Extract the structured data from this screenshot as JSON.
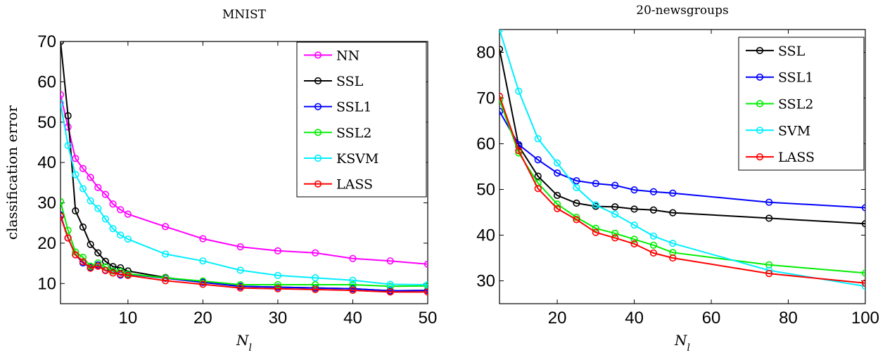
{
  "chart_data": [
    {
      "type": "line",
      "title": "MNIST",
      "xlabel": "N_l",
      "ylabel": "classification error",
      "xlim": [
        1,
        50
      ],
      "ylim": [
        5,
        70
      ],
      "xticks": [
        10,
        20,
        30,
        40,
        50
      ],
      "yticks": [
        10,
        20,
        30,
        40,
        50,
        60,
        70
      ],
      "legend_position": "top-right",
      "grid": false,
      "series": [
        {
          "name": "NN",
          "color": "#ff00ff",
          "x": [
            1,
            2,
            3,
            4,
            5,
            6,
            7,
            8,
            9,
            10,
            15,
            20,
            25,
            30,
            35,
            40,
            45,
            50
          ],
          "y": [
            56.8,
            48.8,
            41.0,
            38.5,
            36.3,
            33.8,
            32.1,
            29.7,
            28.3,
            27.2,
            24.1,
            21.1,
            19.1,
            18.1,
            17.6,
            16.2,
            15.6,
            14.8
          ]
        },
        {
          "name": "SSL",
          "color": "#000000",
          "x": [
            1,
            2,
            3,
            4,
            5,
            6,
            7,
            8,
            9,
            10,
            15,
            20,
            25,
            30,
            35,
            40,
            45,
            50
          ],
          "y": [
            70.0,
            51.6,
            28.0,
            24.0,
            19.7,
            17.6,
            15.5,
            14.2,
            13.9,
            13.1,
            11.5,
            10.3,
            9.3,
            9.1,
            8.9,
            8.7,
            8.2,
            8.3
          ]
        },
        {
          "name": "SSL1",
          "color": "#0000ff",
          "x": [
            1,
            2,
            3,
            4,
            5,
            6,
            7,
            8,
            9,
            10,
            15,
            20,
            25,
            30,
            35,
            40,
            45,
            50
          ],
          "y": [
            27.0,
            21.3,
            17.1,
            15.1,
            14.0,
            14.6,
            13.3,
            13.1,
            12.1,
            12.3,
            11.3,
            10.3,
            9.3,
            9.1,
            8.9,
            8.7,
            8.2,
            8.3
          ]
        },
        {
          "name": "SSL2",
          "color": "#00ee00",
          "x": [
            1,
            2,
            3,
            4,
            5,
            6,
            7,
            8,
            9,
            10,
            15,
            20,
            25,
            30,
            35,
            40,
            45,
            50
          ],
          "y": [
            30.3,
            23.2,
            17.8,
            16.5,
            14.3,
            15.1,
            14.1,
            13.1,
            13.0,
            12.4,
            11.4,
            10.6,
            9.7,
            9.7,
            9.7,
            9.7,
            9.3,
            9.4
          ]
        },
        {
          "name": "KSVM",
          "color": "#00eeff",
          "x": [
            1,
            2,
            3,
            4,
            5,
            6,
            7,
            8,
            9,
            10,
            15,
            20,
            25,
            30,
            35,
            40,
            45,
            50
          ],
          "y": [
            54.7,
            44.2,
            37.0,
            33.5,
            30.5,
            28.6,
            26.0,
            23.6,
            22.0,
            21.0,
            17.3,
            15.6,
            13.3,
            12.0,
            11.4,
            10.8,
            9.8,
            9.7
          ]
        },
        {
          "name": "LASS",
          "color": "#ff0000",
          "x": [
            1,
            2,
            3,
            4,
            5,
            6,
            7,
            8,
            9,
            10,
            15,
            20,
            25,
            30,
            35,
            40,
            45,
            50
          ],
          "y": [
            26.7,
            21.3,
            17.1,
            15.4,
            13.8,
            14.3,
            13.2,
            12.6,
            12.3,
            12.0,
            10.7,
            9.8,
            8.9,
            8.7,
            8.5,
            8.3,
            7.9,
            7.9
          ]
        }
      ]
    },
    {
      "type": "line",
      "title": "20-newsgroups",
      "xlabel": "N_l",
      "ylabel": "",
      "xlim": [
        5,
        100
      ],
      "ylim": [
        25,
        85
      ],
      "xticks": [
        20,
        40,
        60,
        80,
        100
      ],
      "yticks": [
        30,
        40,
        50,
        60,
        70,
        80
      ],
      "legend_position": "top-right",
      "grid": false,
      "series": [
        {
          "name": "SSL",
          "color": "#000000",
          "x": [
            5,
            10,
            15,
            20,
            25,
            30,
            35,
            40,
            45,
            50,
            75,
            100
          ],
          "y": [
            80.7,
            59.5,
            52.9,
            48.7,
            47.0,
            46.3,
            46.2,
            45.7,
            45.5,
            44.9,
            43.7,
            42.5
          ]
        },
        {
          "name": "SSL1",
          "color": "#0000ff",
          "x": [
            5,
            10,
            15,
            20,
            25,
            30,
            35,
            40,
            45,
            50,
            75,
            100
          ],
          "y": [
            67.1,
            59.8,
            56.5,
            53.6,
            51.9,
            51.3,
            50.9,
            49.9,
            49.5,
            49.2,
            47.2,
            46.0
          ]
        },
        {
          "name": "SSL2",
          "color": "#00ee00",
          "x": [
            5,
            10,
            15,
            20,
            25,
            30,
            35,
            40,
            45,
            50,
            75,
            100
          ],
          "y": [
            69.6,
            58.0,
            51.4,
            46.8,
            43.9,
            41.5,
            40.4,
            39.1,
            37.8,
            36.2,
            33.5,
            31.7
          ]
        },
        {
          "name": "SVM",
          "color": "#00eeff",
          "x": [
            5,
            10,
            15,
            20,
            25,
            30,
            35,
            40,
            45,
            50,
            75,
            100
          ],
          "y": [
            85.0,
            71.5,
            61.1,
            55.8,
            50.4,
            46.6,
            44.6,
            42.2,
            39.8,
            38.2,
            32.3,
            28.8
          ]
        },
        {
          "name": "LASS",
          "color": "#ff0000",
          "x": [
            5,
            10,
            15,
            20,
            25,
            30,
            35,
            40,
            45,
            50,
            75,
            100
          ],
          "y": [
            70.4,
            58.5,
            50.2,
            45.8,
            43.4,
            40.6,
            39.4,
            38.1,
            36.1,
            35.0,
            31.6,
            29.5
          ]
        }
      ]
    }
  ]
}
